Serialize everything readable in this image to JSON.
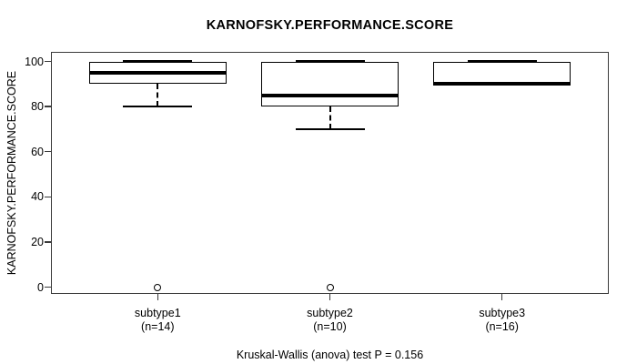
{
  "chart_data": {
    "type": "boxplot",
    "title": "KARNOFSKY.PERFORMANCE.SCORE",
    "ylabel": "KARNOFSKY.PERFORMANCE.SCORE",
    "xlabel": "",
    "footer": "Kruskal-Wallis (anova) test P = 0.156",
    "ylim": [
      0,
      100
    ],
    "yticks": [
      0,
      20,
      40,
      60,
      80,
      100
    ],
    "grid": false,
    "legend": "none",
    "categories": [
      "subtype1",
      "subtype2",
      "subtype3"
    ],
    "groups": [
      {
        "label": "subtype1",
        "sublabel": "(n=14)",
        "n": 14,
        "whisker_low": 80,
        "q1": 90,
        "median": 95,
        "q3": 100,
        "whisker_high": 100,
        "outliers": [
          0
        ]
      },
      {
        "label": "subtype2",
        "sublabel": "(n=10)",
        "n": 10,
        "whisker_low": 70,
        "q1": 80,
        "median": 85,
        "q3": 100,
        "whisker_high": 100,
        "outliers": [
          0
        ]
      },
      {
        "label": "subtype3",
        "sublabel": "(n=16)",
        "n": 16,
        "whisker_low": 90,
        "q1": 90,
        "median": 90,
        "q3": 100,
        "whisker_high": 100,
        "outliers": []
      }
    ]
  },
  "colors": {
    "foreground": "#000000",
    "frame": "#3a3a3a",
    "background": "#ffffff"
  }
}
